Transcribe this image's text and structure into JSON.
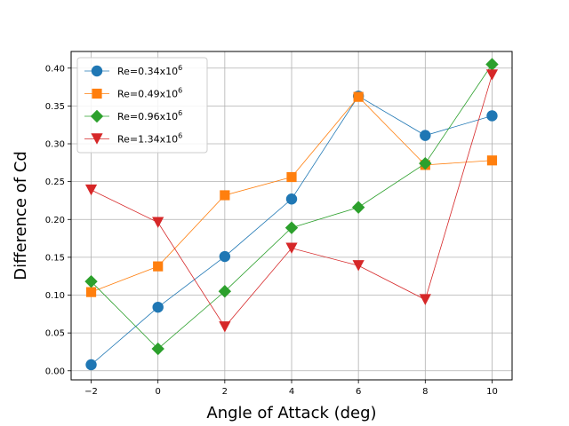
{
  "chart_data": {
    "type": "line",
    "title": "",
    "xlabel": "Angle of Attack (deg)",
    "ylabel": "Difference of Cd",
    "x": [
      -2,
      0,
      2,
      4,
      6,
      8,
      10
    ],
    "xlim": [
      -2.6,
      10.6
    ],
    "ylim": [
      -0.012,
      0.422
    ],
    "xticks": [
      -2,
      0,
      2,
      4,
      6,
      8,
      10
    ],
    "xtick_labels": [
      "−2",
      "0",
      "2",
      "4",
      "6",
      "8",
      "10"
    ],
    "yticks": [
      0.0,
      0.05,
      0.1,
      0.15,
      0.2,
      0.25,
      0.3,
      0.35,
      0.4
    ],
    "ytick_labels": [
      "0.00",
      "0.05",
      "0.10",
      "0.15",
      "0.20",
      "0.25",
      "0.30",
      "0.35",
      "0.40"
    ],
    "grid": true,
    "legend_position": "top-left",
    "series": [
      {
        "name": "Re=0.34x10",
        "name_sup": "6",
        "marker": "circle",
        "color": "#1f77b4",
        "values": [
          0.008,
          0.084,
          0.151,
          0.227,
          0.363,
          0.311,
          0.337
        ]
      },
      {
        "name": "Re=0.49x10",
        "name_sup": "6",
        "marker": "square",
        "color": "#ff7f0e",
        "values": [
          0.104,
          0.138,
          0.232,
          0.256,
          0.362,
          0.272,
          0.278
        ]
      },
      {
        "name": "Re=0.96x10",
        "name_sup": "6",
        "marker": "diamond",
        "color": "#2ca02c",
        "values": [
          0.118,
          0.029,
          0.105,
          0.189,
          0.216,
          0.274,
          0.405
        ]
      },
      {
        "name": "Re=1.34x10",
        "name_sup": "6",
        "marker": "triangle-down",
        "color": "#d62728",
        "values": [
          0.239,
          0.196,
          0.058,
          0.162,
          0.139,
          0.094,
          0.391
        ]
      }
    ]
  }
}
